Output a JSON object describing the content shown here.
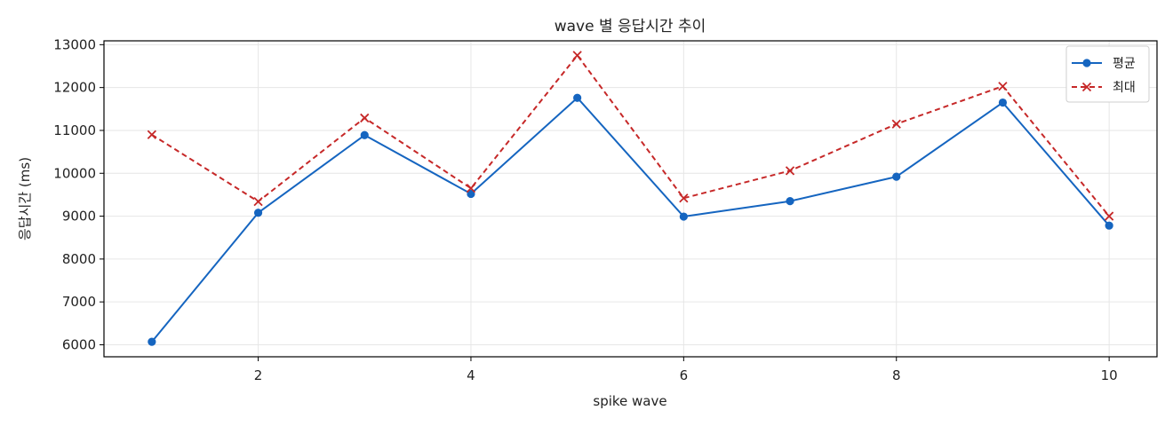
{
  "chart_data": {
    "type": "line",
    "title": "wave 별 응답시간 추이",
    "xlabel": "spike wave",
    "ylabel": "응답시간 (ms)",
    "x": [
      1,
      2,
      3,
      4,
      5,
      6,
      7,
      8,
      9,
      10
    ],
    "xticks": [
      2,
      4,
      6,
      8,
      10
    ],
    "xlim": [
      0.55,
      10.45
    ],
    "yticks": [
      6000,
      7000,
      8000,
      9000,
      10000,
      11000,
      12000,
      13000
    ],
    "ylim": [
      5720,
      13090
    ],
    "grid": true,
    "legend_position": "top-right",
    "series": [
      {
        "name": "평균",
        "color": "#1565c0",
        "line_style": "solid",
        "marker": "circle",
        "values": [
          6070,
          9080,
          10890,
          9520,
          11760,
          8990,
          9350,
          9920,
          11650,
          8780
        ]
      },
      {
        "name": "최대",
        "color": "#c62828",
        "line_style": "dashed",
        "marker": "x",
        "values": [
          10900,
          9340,
          11290,
          9650,
          12750,
          9420,
          10060,
          11150,
          12030,
          9000
        ]
      }
    ]
  }
}
